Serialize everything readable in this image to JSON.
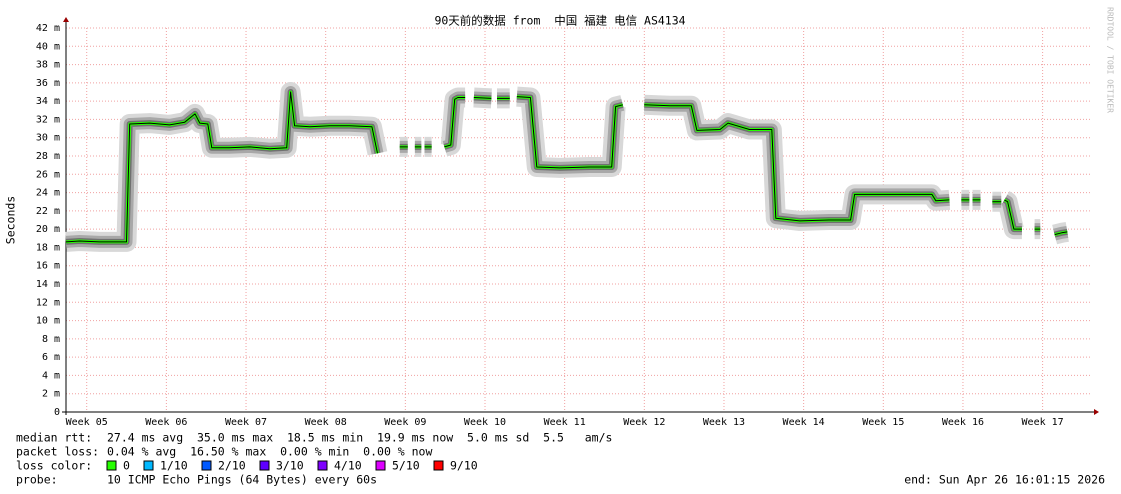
{
  "chart_data": {
    "type": "line",
    "title": "90天前的数据 from  中国 福建 电信 AS4134",
    "y_label": "Seconds",
    "watermark": "RRDTOOL / TOBI OETIKER",
    "x": [
      4.74,
      4.91,
      5.16,
      5.35,
      5.5,
      5.54,
      5.79,
      6.04,
      6.23,
      6.36,
      6.42,
      6.52,
      6.57,
      6.79,
      7.05,
      7.3,
      7.51,
      7.56,
      7.61,
      7.8,
      8.05,
      8.3,
      8.58,
      8.65,
      8.79,
      8.93,
      9.03,
      9.08,
      9.12,
      9.2,
      9.22,
      9.24,
      9.33,
      9.4,
      9.49,
      9.57,
      9.62,
      9.66,
      9.75,
      9.8,
      9.86,
      10.08,
      10.12,
      10.15,
      10.31,
      10.35,
      10.4,
      10.57,
      10.61,
      10.65,
      10.94,
      11.31,
      11.59,
      11.64,
      11.73,
      11.86,
      12.0,
      12.32,
      12.59,
      12.66,
      12.95,
      13.05,
      13.32,
      13.6,
      13.65,
      13.95,
      14.32,
      14.59,
      14.64,
      14.95,
      15.33,
      15.61,
      15.66,
      15.83,
      15.9,
      15.98,
      16.08,
      16.1,
      16.12,
      16.22,
      16.3,
      16.37,
      16.48,
      16.5,
      16.52,
      16.56,
      16.64,
      16.74,
      16.82,
      16.9,
      16.97,
      17.06,
      17.15,
      17.24,
      17.31
    ],
    "values": [
      18.6,
      18.7,
      18.6,
      18.6,
      18.6,
      31.5,
      31.6,
      31.4,
      31.7,
      32.6,
      31.6,
      31.5,
      28.9,
      28.9,
      29.0,
      28.8,
      28.9,
      35.0,
      31.3,
      31.2,
      31.3,
      31.3,
      31.2,
      28.3,
      null,
      29.0,
      29.0,
      null,
      29.0,
      29.0,
      null,
      29.0,
      29.0,
      null,
      29.0,
      29.2,
      34.2,
      34.4,
      34.4,
      null,
      34.4,
      34.3,
      null,
      34.3,
      34.3,
      null,
      34.5,
      34.4,
      30.6,
      26.8,
      26.7,
      26.8,
      26.8,
      33.4,
      33.6,
      null,
      33.6,
      33.5,
      33.5,
      30.8,
      30.9,
      31.6,
      30.9,
      30.9,
      21.2,
      20.9,
      21.0,
      21.0,
      23.8,
      23.8,
      23.8,
      23.8,
      23.1,
      23.2,
      null,
      23.2,
      23.2,
      null,
      23.2,
      23.2,
      null,
      23.0,
      23.0,
      null,
      23.2,
      23.0,
      20.0,
      20.0,
      null,
      20.0,
      20.0,
      null,
      19.4,
      19.6,
      19.7
    ],
    "xlim": [
      4.74,
      17.62
    ],
    "ylim": [
      0,
      42
    ],
    "xticks": [
      {
        "value": 5,
        "label": "Week 05"
      },
      {
        "value": 6,
        "label": "Week 06"
      },
      {
        "value": 7,
        "label": "Week 07"
      },
      {
        "value": 8,
        "label": "Week 08"
      },
      {
        "value": 9,
        "label": "Week 09"
      },
      {
        "value": 10,
        "label": "Week 10"
      },
      {
        "value": 11,
        "label": "Week 11"
      },
      {
        "value": 12,
        "label": "Week 12"
      },
      {
        "value": 13,
        "label": "Week 13"
      },
      {
        "value": 14,
        "label": "Week 14"
      },
      {
        "value": 15,
        "label": "Week 15"
      },
      {
        "value": 16,
        "label": "Week 16"
      },
      {
        "value": 17,
        "label": "Week 17"
      }
    ],
    "yticks": [
      0,
      {
        "value": 2,
        "label": "2 m"
      },
      {
        "value": 4,
        "label": "4 m"
      },
      {
        "value": 6,
        "label": "6 m"
      },
      {
        "value": 8,
        "label": "8 m"
      },
      {
        "value": 10,
        "label": "10 m"
      },
      {
        "value": 12,
        "label": "12 m"
      },
      {
        "value": 14,
        "label": "14 m"
      },
      {
        "value": 16,
        "label": "16 m"
      },
      {
        "value": 18,
        "label": "18 m"
      },
      {
        "value": 20,
        "label": "20 m"
      },
      {
        "value": 22,
        "label": "22 m"
      },
      {
        "value": 24,
        "label": "24 m"
      },
      {
        "value": 26,
        "label": "26 m"
      },
      {
        "value": 28,
        "label": "28 m"
      },
      {
        "value": 30,
        "label": "30 m"
      },
      {
        "value": 32,
        "label": "32 m"
      },
      {
        "value": 34,
        "label": "34 m"
      },
      {
        "value": 36,
        "label": "36 m"
      },
      {
        "value": 38,
        "label": "38 m"
      },
      {
        "value": 40,
        "label": "40 m"
      },
      {
        "value": 42,
        "label": "42 m"
      }
    ],
    "grid": true,
    "stats": [
      {
        "label": "median rtt:",
        "text": "27.4 ms avg  35.0 ms max  18.5 ms min  19.9 ms now  5.0 ms sd  5.5   am/s"
      },
      {
        "label": "packet loss:",
        "text": "0.04 % avg  16.50 % max  0.00 % min  0.00 % now"
      }
    ],
    "loss_color_label": "loss color:",
    "loss_colors": [
      {
        "label": "0",
        "color": "#26ff00"
      },
      {
        "label": "1/10",
        "color": "#00b8ff"
      },
      {
        "label": "2/10",
        "color": "#0059ff"
      },
      {
        "label": "3/10",
        "color": "#5e00ff"
      },
      {
        "label": "4/10",
        "color": "#7e00ff"
      },
      {
        "label": "5/10",
        "color": "#dd00ff"
      },
      {
        "label": "9/10",
        "color": "#ff0000"
      }
    ],
    "probe_label": "probe:",
    "probe": "10 ICMP Echo Pings (64 Bytes) every 60s",
    "end": "end: Sun Apr 26 16:01:15 2026"
  }
}
